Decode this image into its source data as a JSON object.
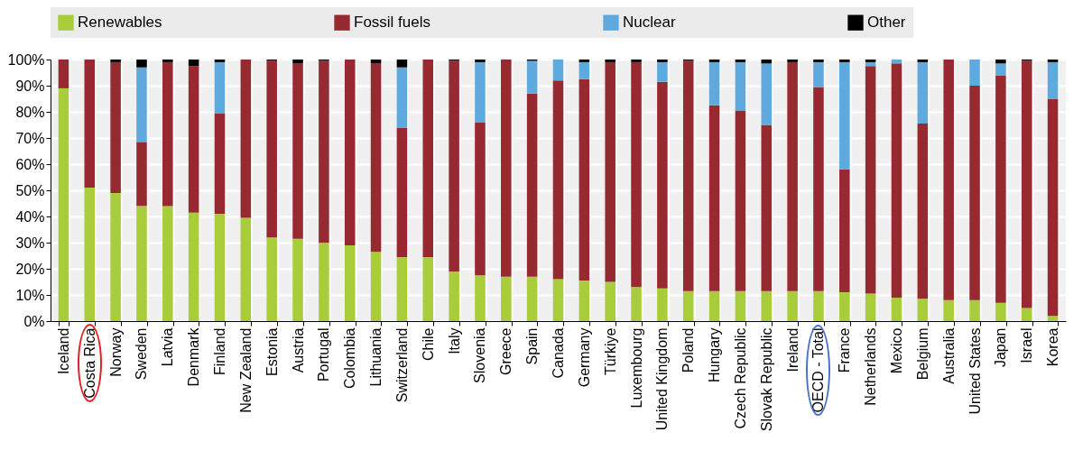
{
  "chart_data": {
    "type": "bar",
    "stacked": true,
    "grid": true,
    "legend": "top",
    "categories": [
      "Iceland",
      "Costa Rica",
      "Norway",
      "Sweden",
      "Latvia",
      "Denmark",
      "Finland",
      "New Zealand",
      "Estonia",
      "Austria",
      "Portugal",
      "Colombia",
      "Lithuania",
      "Switzerland",
      "Chile",
      "Italy",
      "Slovenia",
      "Greece",
      "Spain",
      "Canada",
      "Germany",
      "Türkiye",
      "Luxembourg",
      "United Kingdom",
      "Poland",
      "Hungary",
      "Czech Republic",
      "Slovak Republic",
      "Ireland",
      "OECD - Total",
      "France",
      "Netherlands",
      "Mexico",
      "Belgium",
      "Australia",
      "United States",
      "Japan",
      "Israel",
      "Korea"
    ],
    "ylim": [
      0,
      100
    ],
    "yticks": [
      {
        "value": 0,
        "label": "0%"
      },
      {
        "value": 10,
        "label": "10%"
      },
      {
        "value": 20,
        "label": "20%"
      },
      {
        "value": 30,
        "label": "30%"
      },
      {
        "value": 40,
        "label": "40%"
      },
      {
        "value": 50,
        "label": "50%"
      },
      {
        "value": 60,
        "label": "60%"
      },
      {
        "value": 70,
        "label": "70%"
      },
      {
        "value": 80,
        "label": "80%"
      },
      {
        "value": 90,
        "label": "90%"
      },
      {
        "value": 100,
        "label": "100%"
      }
    ],
    "series": [
      {
        "name": "Renewables",
        "color": "#a9cc3a",
        "values": [
          89,
          51,
          49,
          44,
          44,
          41.5,
          41,
          39.5,
          32,
          31.5,
          30,
          29,
          26.5,
          24.5,
          24.5,
          19,
          17.5,
          17,
          17,
          16,
          15.5,
          15,
          13,
          12.5,
          11.5,
          11.5,
          11.5,
          11.5,
          11.5,
          11.5,
          11,
          10.5,
          9,
          8.5,
          8,
          8,
          7,
          5,
          2
        ]
      },
      {
        "name": "Fossil fuels",
        "color": "#962a30",
        "values": [
          11,
          49,
          50,
          24.5,
          55,
          56,
          38.5,
          60.5,
          67.5,
          67,
          69.5,
          71,
          72,
          49.5,
          75.5,
          80.5,
          58.5,
          83,
          70,
          76,
          77,
          84,
          86,
          79,
          88,
          71,
          69,
          63.5,
          87.5,
          78,
          47,
          87,
          89.5,
          67,
          92,
          82,
          87,
          94.5,
          83
        ]
      },
      {
        "name": "Nuclear",
        "color": "#5eaadf",
        "values": [
          0,
          0,
          0,
          28.5,
          0,
          0,
          19.5,
          0,
          0,
          0,
          0,
          0,
          0,
          23,
          0,
          0,
          23,
          0,
          12.5,
          8,
          6.5,
          0,
          0,
          7.5,
          0,
          16.5,
          18.5,
          23.5,
          0,
          9.5,
          41,
          1.5,
          1.5,
          23.5,
          0,
          10,
          4.5,
          0,
          14
        ]
      },
      {
        "name": "Other",
        "color": "#000000",
        "values": [
          0,
          0,
          1,
          3,
          1,
          2.5,
          1,
          0,
          0.5,
          1.5,
          0.5,
          0,
          1.5,
          3,
          0,
          0.5,
          1,
          0,
          0.5,
          0,
          1,
          1,
          1,
          1,
          0.5,
          1,
          1,
          1.5,
          1,
          1,
          1,
          1,
          0,
          1,
          0,
          0,
          1.5,
          0.5,
          1
        ]
      }
    ]
  }
}
